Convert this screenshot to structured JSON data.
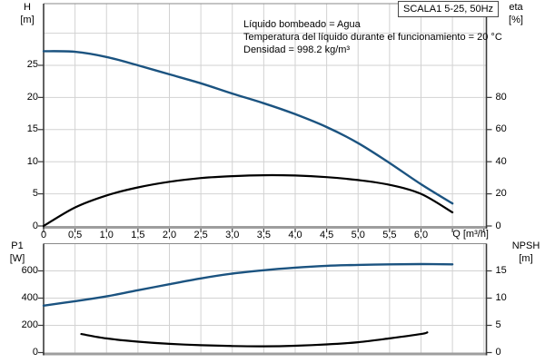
{
  "colors": {
    "curve_blue": "#1b5380",
    "curve_black": "#000000",
    "grid": "#d2d2d2",
    "border_dark": "#3a3a3a",
    "border_top": "#8a8a8a",
    "axis_base": "#9e9e9e"
  },
  "chart_data": [
    {
      "type": "line",
      "title": "SCALA1 5-25, 50Hz",
      "annotations": [
        "Líquido bombeado = Agua",
        "Temperatura del líquido durante el funcionamiento = 20 °C",
        "Densidad = 998.2 kg/m³"
      ],
      "x_label": "Q [m³/h]",
      "x_range": [
        0,
        7.04
      ],
      "x_tick_values": [
        0,
        0.5,
        1,
        1.5,
        2,
        2.5,
        3,
        3.5,
        4,
        4.5,
        5,
        5.5,
        6
      ],
      "x_tick_labels": [
        "0",
        "0,5",
        "1,0",
        "1,5",
        "2,0",
        "2,5",
        "3,0",
        "3,5",
        "4,0",
        "4,5",
        "5,0",
        "5,5",
        "6,0"
      ],
      "x_minor_tick_values": [
        6.5,
        7
      ],
      "grid": true,
      "legend": "none",
      "left_axis": {
        "label": "H",
        "unit": "[m]",
        "range": [
          0,
          34.6
        ],
        "tick_values": [
          0,
          5,
          10,
          15,
          20,
          25
        ],
        "tick_labels": [
          "0",
          "5",
          "10",
          "15",
          "20",
          "25"
        ],
        "grid_values": [
          5,
          10,
          15,
          20,
          25,
          30
        ]
      },
      "right_axis": {
        "label": "eta",
        "unit": "[%]",
        "range": [
          0,
          138.4
        ],
        "tick_values": [
          0,
          20,
          40,
          60,
          80
        ],
        "tick_labels": [
          "0",
          "20",
          "40",
          "60",
          "80"
        ]
      },
      "series": [
        {
          "name": "head-curve",
          "axis": "left",
          "color_key": "curve_blue",
          "width": 2.4,
          "points": [
            [
              0,
              27.2
            ],
            [
              0.5,
              27.1
            ],
            [
              1,
              26.3
            ],
            [
              1.5,
              25.0
            ],
            [
              2,
              23.6
            ],
            [
              2.5,
              22.2
            ],
            [
              3,
              20.6
            ],
            [
              3.5,
              19.1
            ],
            [
              4,
              17.4
            ],
            [
              4.5,
              15.4
            ],
            [
              5,
              12.9
            ],
            [
              5.5,
              9.8
            ],
            [
              6,
              6.5
            ],
            [
              6.5,
              3.5
            ]
          ]
        },
        {
          "name": "efficiency-curve",
          "axis": "right",
          "color_key": "curve_black",
          "width": 2.2,
          "points": [
            [
              0,
              0
            ],
            [
              0.5,
              11.5
            ],
            [
              1,
              19
            ],
            [
              1.5,
              24
            ],
            [
              2,
              27.5
            ],
            [
              2.5,
              29.8
            ],
            [
              3,
              31
            ],
            [
              3.5,
              31.6
            ],
            [
              4,
              31.4
            ],
            [
              4.5,
              30.4
            ],
            [
              5,
              28.6
            ],
            [
              5.5,
              25.6
            ],
            [
              6,
              20
            ],
            [
              6.5,
              8.5
            ]
          ]
        }
      ]
    },
    {
      "type": "line",
      "x_range": [
        0,
        7.04
      ],
      "x_tick_values": [
        0,
        0.5,
        1,
        1.5,
        2,
        2.5,
        3,
        3.5,
        4,
        4.5,
        5,
        5.5,
        6
      ],
      "x_minor_tick_values": [
        6.5,
        7
      ],
      "grid": true,
      "legend": "none",
      "left_axis": {
        "label": "P1",
        "unit": "[W]",
        "range": [
          0,
          800
        ],
        "tick_values": [
          0,
          200,
          400,
          600
        ],
        "tick_labels": [
          "0",
          "200",
          "400",
          "600"
        ],
        "grid_values": [
          200,
          400,
          600
        ]
      },
      "right_axis": {
        "label": "NPSH",
        "unit": "[m]",
        "range": [
          0,
          20
        ],
        "tick_values": [
          0,
          5,
          10,
          15
        ],
        "tick_labels": [
          "0",
          "5",
          "10",
          "15"
        ]
      },
      "series": [
        {
          "name": "power-curve",
          "axis": "left",
          "color_key": "curve_blue",
          "width": 2.4,
          "points": [
            [
              0,
              345
            ],
            [
              0.5,
              377
            ],
            [
              1,
              413
            ],
            [
              1.5,
              458
            ],
            [
              2,
              502
            ],
            [
              2.5,
              545
            ],
            [
              3,
              580
            ],
            [
              3.5,
              605
            ],
            [
              4,
              624
            ],
            [
              4.5,
              637
            ],
            [
              5,
              644
            ],
            [
              5.5,
              648
            ],
            [
              6,
              650
            ],
            [
              6.5,
              648
            ]
          ]
        },
        {
          "name": "npsh-curve",
          "axis": "right",
          "color_key": "curve_black",
          "width": 2.2,
          "points": [
            [
              0.6,
              3.4
            ],
            [
              1,
              2.6
            ],
            [
              1.5,
              2.0
            ],
            [
              2,
              1.6
            ],
            [
              2.5,
              1.35
            ],
            [
              3,
              1.2
            ],
            [
              3.5,
              1.15
            ],
            [
              4,
              1.25
            ],
            [
              4.5,
              1.5
            ],
            [
              5,
              1.9
            ],
            [
              5.5,
              2.6
            ],
            [
              6,
              3.4
            ],
            [
              6.1,
              3.7
            ]
          ]
        }
      ]
    }
  ]
}
